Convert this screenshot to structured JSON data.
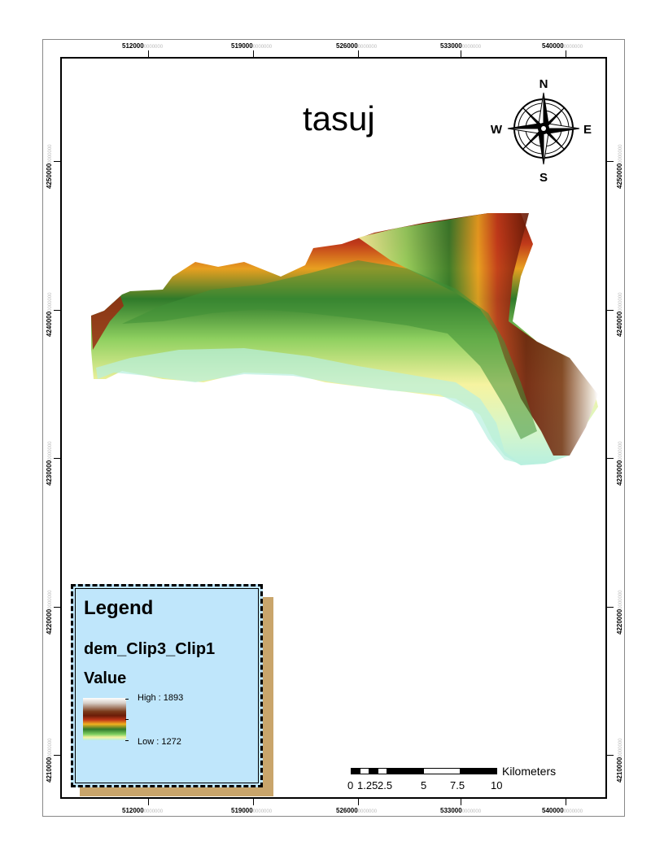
{
  "map": {
    "title": "tasuj",
    "north_arrow": {
      "N": "N",
      "S": "S",
      "E": "E",
      "W": "W"
    },
    "x_ticks": [
      "512000",
      "519000",
      "526000",
      "533000",
      "540000"
    ],
    "x_tick_suffix": "0000000",
    "y_ticks": [
      "4250000",
      "4240000",
      "4230000",
      "4220000",
      "4210000"
    ],
    "y_tick_suffix": "0000000"
  },
  "legend": {
    "title": "Legend",
    "layer": "dem_Clip3_Clip1",
    "field": "Value",
    "high_label": "High : 1893",
    "low_label": "Low : 1272"
  },
  "scalebar": {
    "labels": [
      "0",
      "1.25",
      "2.5",
      "5",
      "7.5",
      "10"
    ],
    "units": "Kilometers"
  },
  "colors": {
    "terrain_high": "#6b1c08",
    "terrain_mid": "#2f7a2a",
    "terrain_low": "#b8f0e0",
    "legend_bg": "#bfe6fb"
  }
}
